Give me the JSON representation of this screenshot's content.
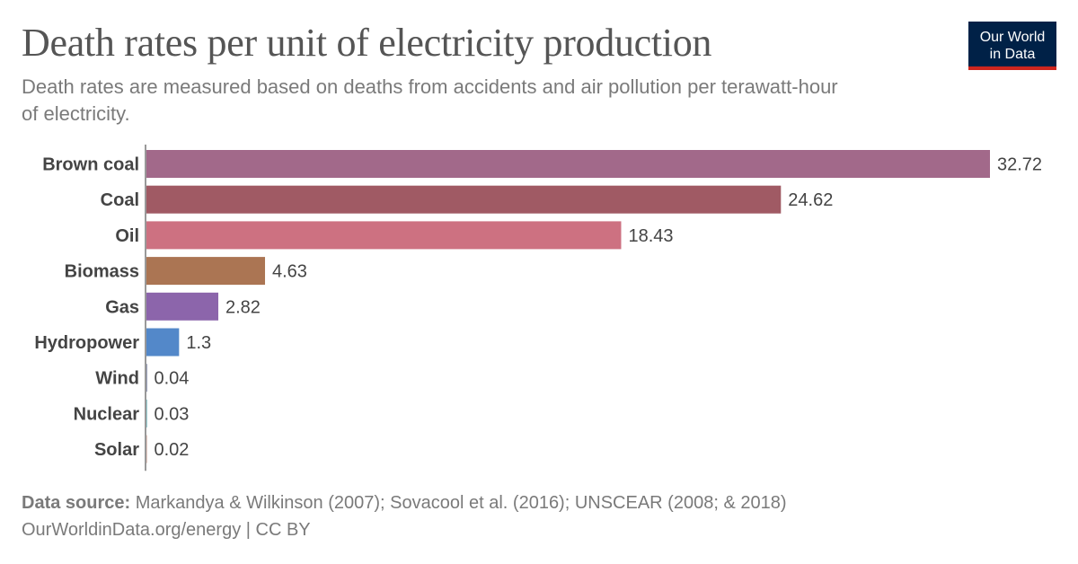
{
  "header": {
    "title": "Death rates per unit of electricity production",
    "subtitle": "Death rates are measured based on deaths from accidents and air pollution per terawatt-hour of electricity."
  },
  "logo": {
    "line1": "Our World",
    "line2": "in Data"
  },
  "footer": {
    "source_prefix": "Data source:",
    "source_text": " Markandya & Wilkinson (2007); Sovacool et al. (2016); UNSCEAR (2008; & 2018)",
    "url_line": "OurWorldinData.org/energy | CC BY"
  },
  "colors": {
    "title": "#555555",
    "logo_bg": "#002147",
    "logo_accent": "#ce261e"
  },
  "chart_data": {
    "type": "bar",
    "orientation": "horizontal",
    "title": "Death rates per unit of electricity production",
    "xlabel": "",
    "ylabel": "",
    "xlim": [
      0,
      32.72
    ],
    "grid": false,
    "categories": [
      "Brown coal",
      "Coal",
      "Oil",
      "Biomass",
      "Gas",
      "Hydropower",
      "Wind",
      "Nuclear",
      "Solar"
    ],
    "values": [
      32.72,
      24.62,
      18.43,
      4.63,
      2.82,
      1.3,
      0.04,
      0.03,
      0.02
    ],
    "value_labels": [
      "32.72",
      "24.62",
      "18.43",
      "4.63",
      "2.82",
      "1.3",
      "0.04",
      "0.03",
      "0.02"
    ],
    "bar_colors": [
      "#a2698a",
      "#a05a64",
      "#cd7181",
      "#ab7553",
      "#8c65ab",
      "#5388c9",
      "#2c3a6e",
      "#2a9aa3",
      "#c58d7c"
    ]
  }
}
